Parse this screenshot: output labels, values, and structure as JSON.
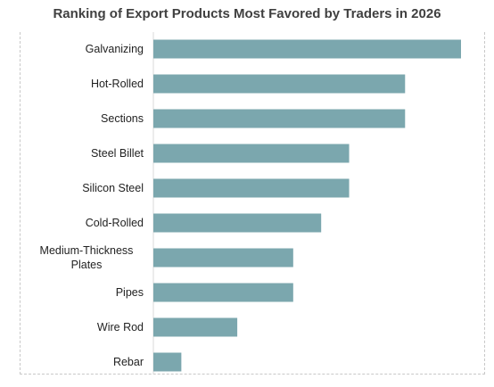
{
  "chart_data": {
    "type": "bar",
    "orientation": "horizontal",
    "title": "Ranking of Export Products Most Favored by Traders in 2026",
    "categories": [
      "Galvanizing",
      "Hot-Rolled",
      "Sections",
      "Steel Billet",
      "Silicon Steel",
      "Cold-Rolled",
      "Medium-Thickness Plates",
      "Pipes",
      "Wire Rod",
      "Rebar"
    ],
    "values": [
      11,
      9,
      9,
      7,
      7,
      6,
      5,
      5,
      3,
      1
    ],
    "color": "#7ba7ae"
  }
}
